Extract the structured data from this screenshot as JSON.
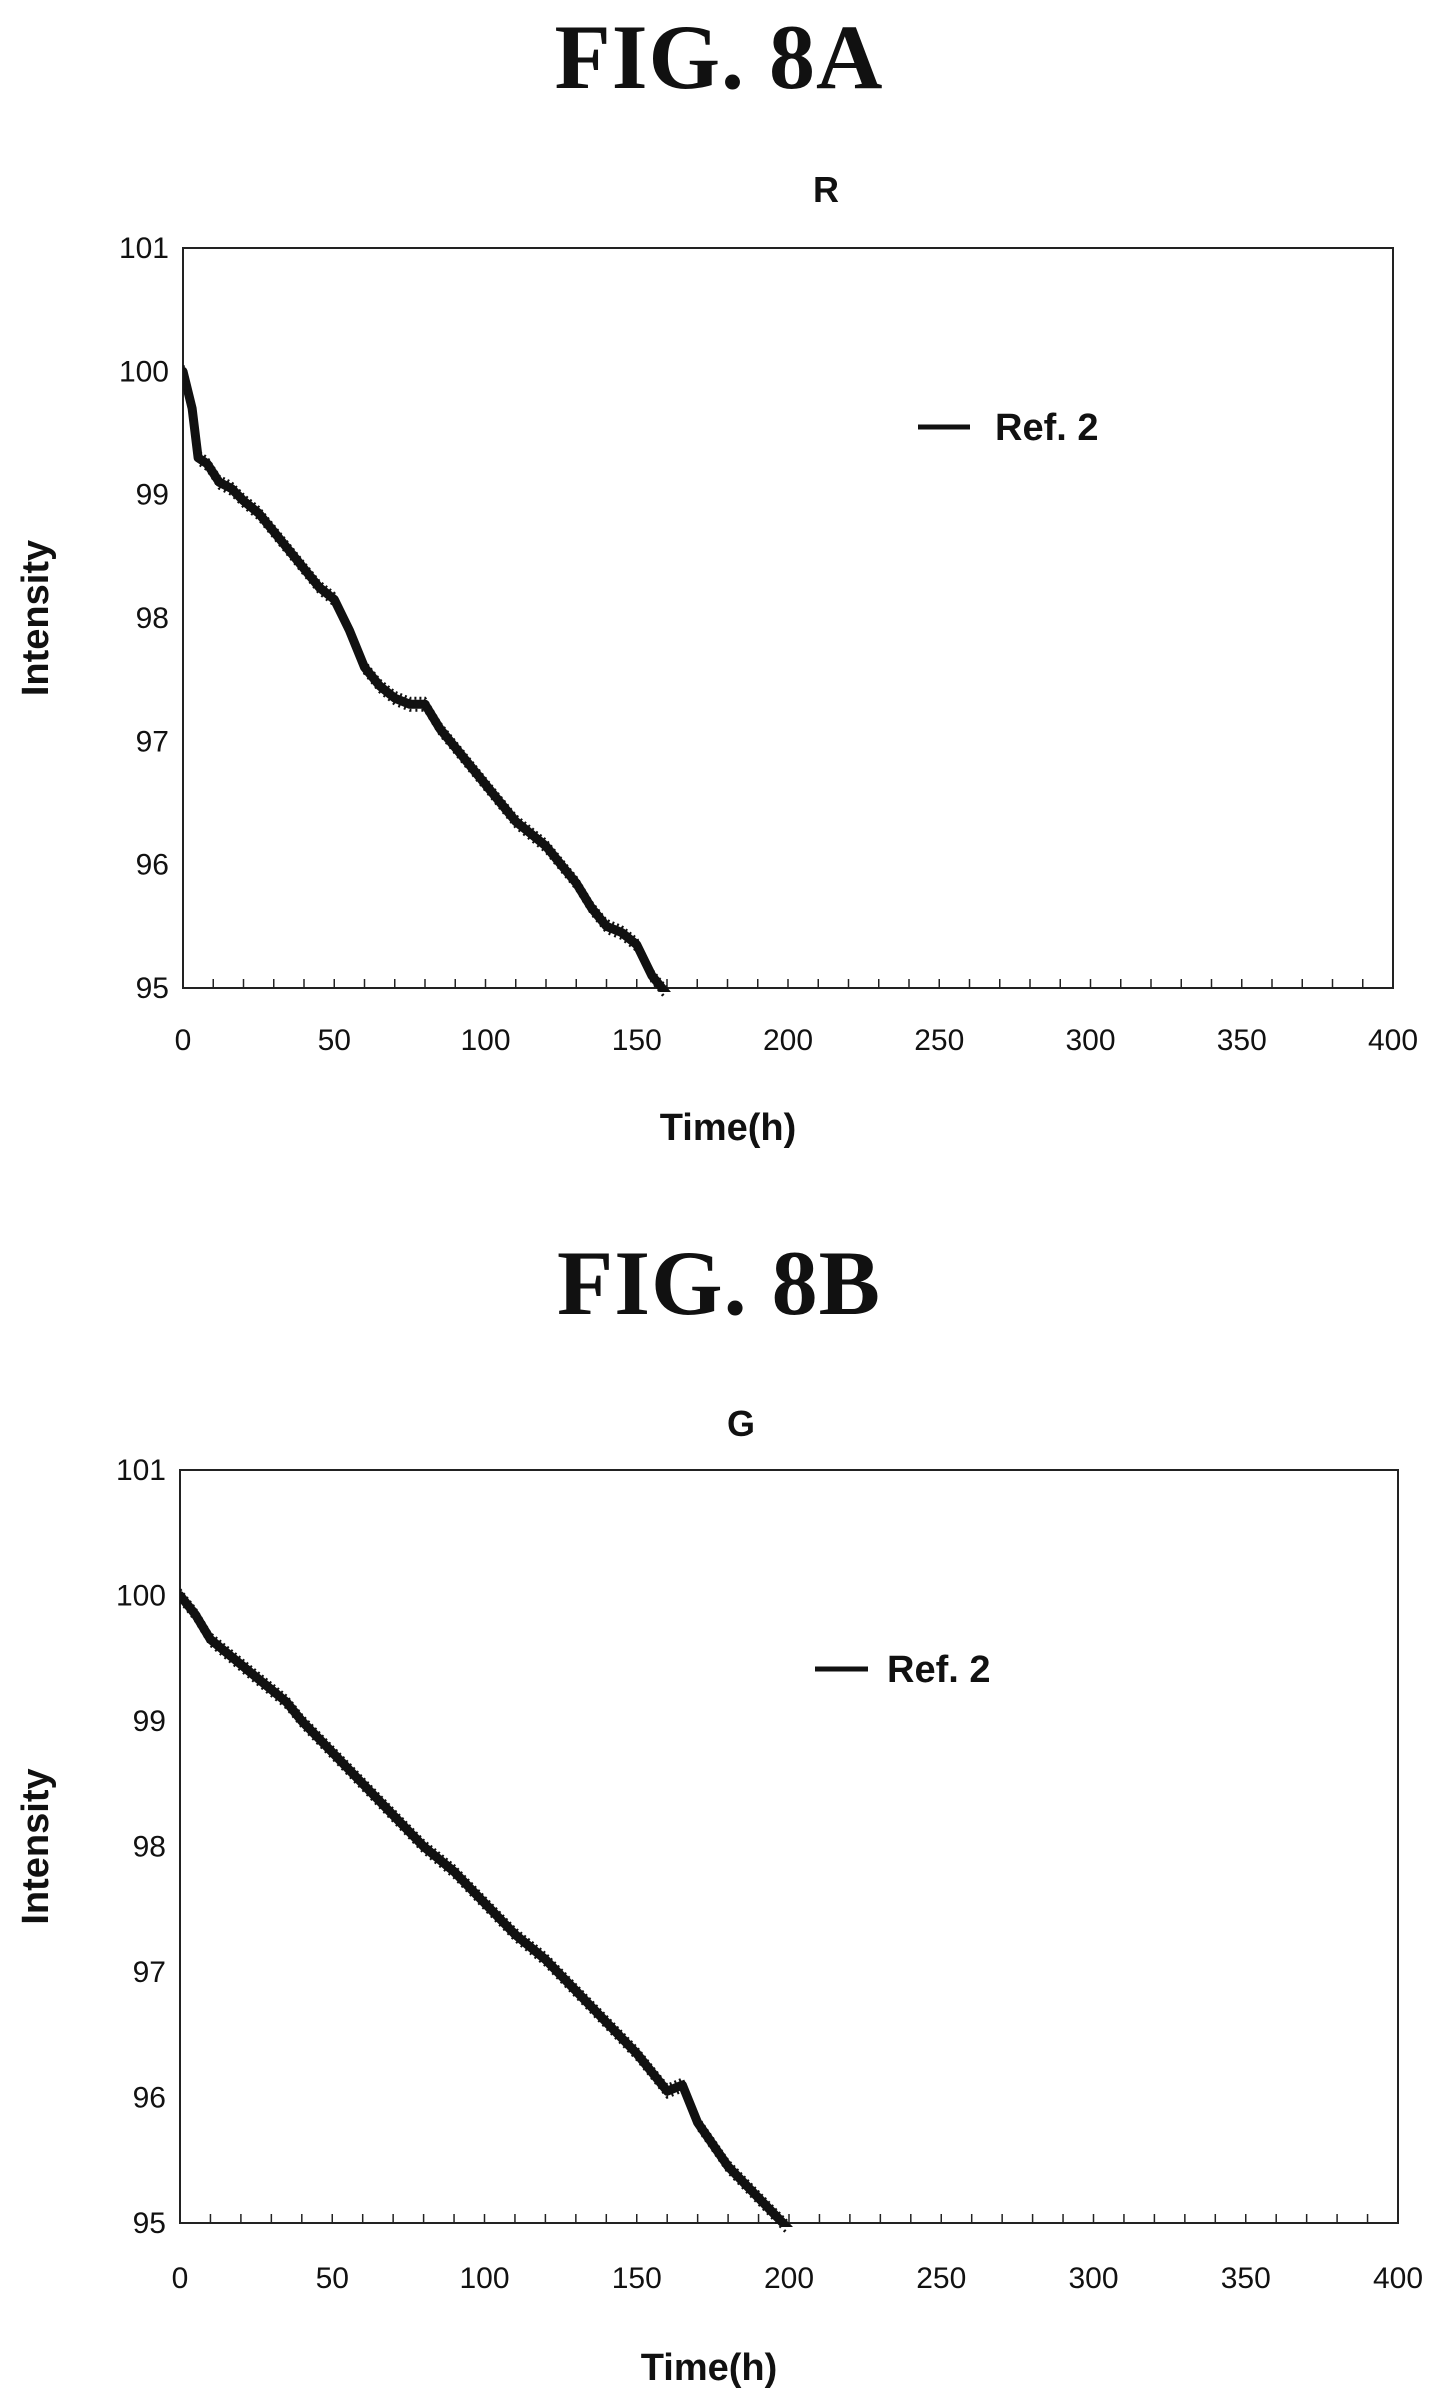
{
  "figures": [
    {
      "label": "FIG. 8A"
    },
    {
      "label": "FIG. 8B"
    }
  ],
  "chart_data": [
    {
      "type": "line",
      "title": "R",
      "xlabel": "Time(h)",
      "ylabel": "Intensity",
      "xlim": [
        0,
        400
      ],
      "ylim": [
        95,
        101
      ],
      "x_ticks": [
        0,
        50,
        100,
        150,
        200,
        250,
        300,
        350,
        400
      ],
      "y_ticks": [
        95,
        96,
        97,
        98,
        99,
        100,
        101
      ],
      "legend_position": "top-right",
      "grid": false,
      "series": [
        {
          "name": "Ref. 2",
          "color": "#111111",
          "x": [
            0,
            3,
            5,
            8,
            12,
            16,
            20,
            25,
            30,
            35,
            40,
            45,
            50,
            55,
            60,
            65,
            70,
            75,
            80,
            85,
            90,
            95,
            100,
            105,
            110,
            115,
            120,
            125,
            130,
            135,
            140,
            145,
            150,
            155,
            160
          ],
          "y": [
            100.0,
            99.7,
            99.3,
            99.25,
            99.1,
            99.05,
            98.95,
            98.85,
            98.7,
            98.55,
            98.4,
            98.25,
            98.15,
            97.9,
            97.6,
            97.45,
            97.35,
            97.3,
            97.3,
            97.1,
            96.95,
            96.8,
            96.65,
            96.5,
            96.35,
            96.25,
            96.15,
            96.0,
            95.85,
            95.65,
            95.5,
            95.45,
            95.35,
            95.1,
            94.95
          ]
        }
      ]
    },
    {
      "type": "line",
      "title": "G",
      "xlabel": "Time(h)",
      "ylabel": "Intensity",
      "xlim": [
        0,
        400
      ],
      "ylim": [
        95,
        101
      ],
      "x_ticks": [
        0,
        50,
        100,
        150,
        200,
        250,
        300,
        350,
        400
      ],
      "y_ticks": [
        95,
        96,
        97,
        98,
        99,
        100,
        101
      ],
      "legend_position": "top-right",
      "grid": false,
      "series": [
        {
          "name": "Ref. 2",
          "color": "#111111",
          "x": [
            0,
            5,
            10,
            15,
            20,
            25,
            30,
            35,
            40,
            50,
            60,
            70,
            80,
            90,
            100,
            110,
            120,
            130,
            140,
            150,
            160,
            165,
            170,
            180,
            190,
            200
          ],
          "y": [
            100.0,
            99.85,
            99.65,
            99.55,
            99.45,
            99.35,
            99.25,
            99.15,
            99.0,
            98.75,
            98.5,
            98.25,
            98.0,
            97.8,
            97.55,
            97.3,
            97.1,
            96.85,
            96.6,
            96.35,
            96.05,
            96.1,
            95.8,
            95.45,
            95.2,
            94.95
          ]
        }
      ]
    }
  ]
}
